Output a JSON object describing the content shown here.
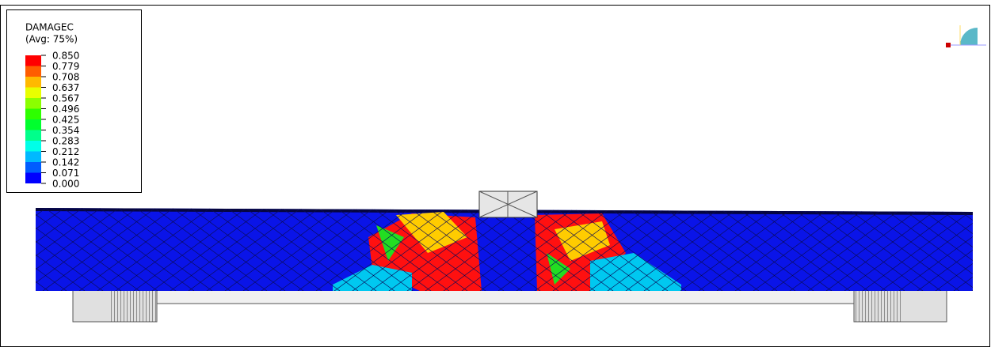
{
  "legend": {
    "title": "DAMAGEC",
    "subtitle": "(Avg: 75%)",
    "levels": [
      "0.850",
      "0.779",
      "0.708",
      "0.637",
      "0.567",
      "0.496",
      "0.425",
      "0.354",
      "0.283",
      "0.212",
      "0.142",
      "0.071",
      "0.000"
    ],
    "colors": [
      "#ff0000",
      "#ff5d00",
      "#ffb900",
      "#e8ff00",
      "#8bff00",
      "#2eff00",
      "#00ff2e",
      "#00ff8b",
      "#00ffe8",
      "#00b9ff",
      "#005dff",
      "#0000ff"
    ]
  }
}
